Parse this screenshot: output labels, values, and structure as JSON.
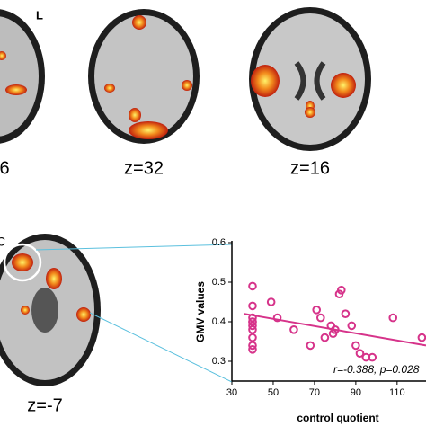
{
  "figure": {
    "side_label": "L",
    "slice_labels": [
      "6",
      "z=32",
      "z=16",
      "z=-7"
    ],
    "panel_label": "C"
  },
  "chart_data": {
    "type": "scatter",
    "xlabel": "control quotient",
    "ylabel": "GMV values",
    "annotation": "r=-0.388, p=0.028",
    "xlim": [
      30,
      124
    ],
    "xticks": [
      30,
      50,
      70,
      90,
      110
    ],
    "ylim": [
      0.25,
      0.6
    ],
    "yticks": [
      0.3,
      0.4,
      0.5,
      0.6
    ],
    "color": "#d6338a",
    "x": [
      40,
      40,
      40,
      40,
      40,
      40,
      40,
      40,
      40,
      40,
      49,
      52,
      60,
      68,
      71,
      73,
      75,
      78,
      79,
      80,
      82,
      83,
      85,
      88,
      90,
      92,
      95,
      98,
      108,
      122
    ],
    "values": [
      0.49,
      0.44,
      0.41,
      0.4,
      0.4,
      0.39,
      0.38,
      0.36,
      0.34,
      0.33,
      0.45,
      0.41,
      0.38,
      0.34,
      0.43,
      0.41,
      0.36,
      0.39,
      0.37,
      0.38,
      0.47,
      0.48,
      0.42,
      0.39,
      0.34,
      0.32,
      0.31,
      0.31,
      0.41,
      0.36
    ],
    "trend_line": {
      "x": [
        36,
        124
      ],
      "values": [
        0.42,
        0.34
      ]
    }
  }
}
